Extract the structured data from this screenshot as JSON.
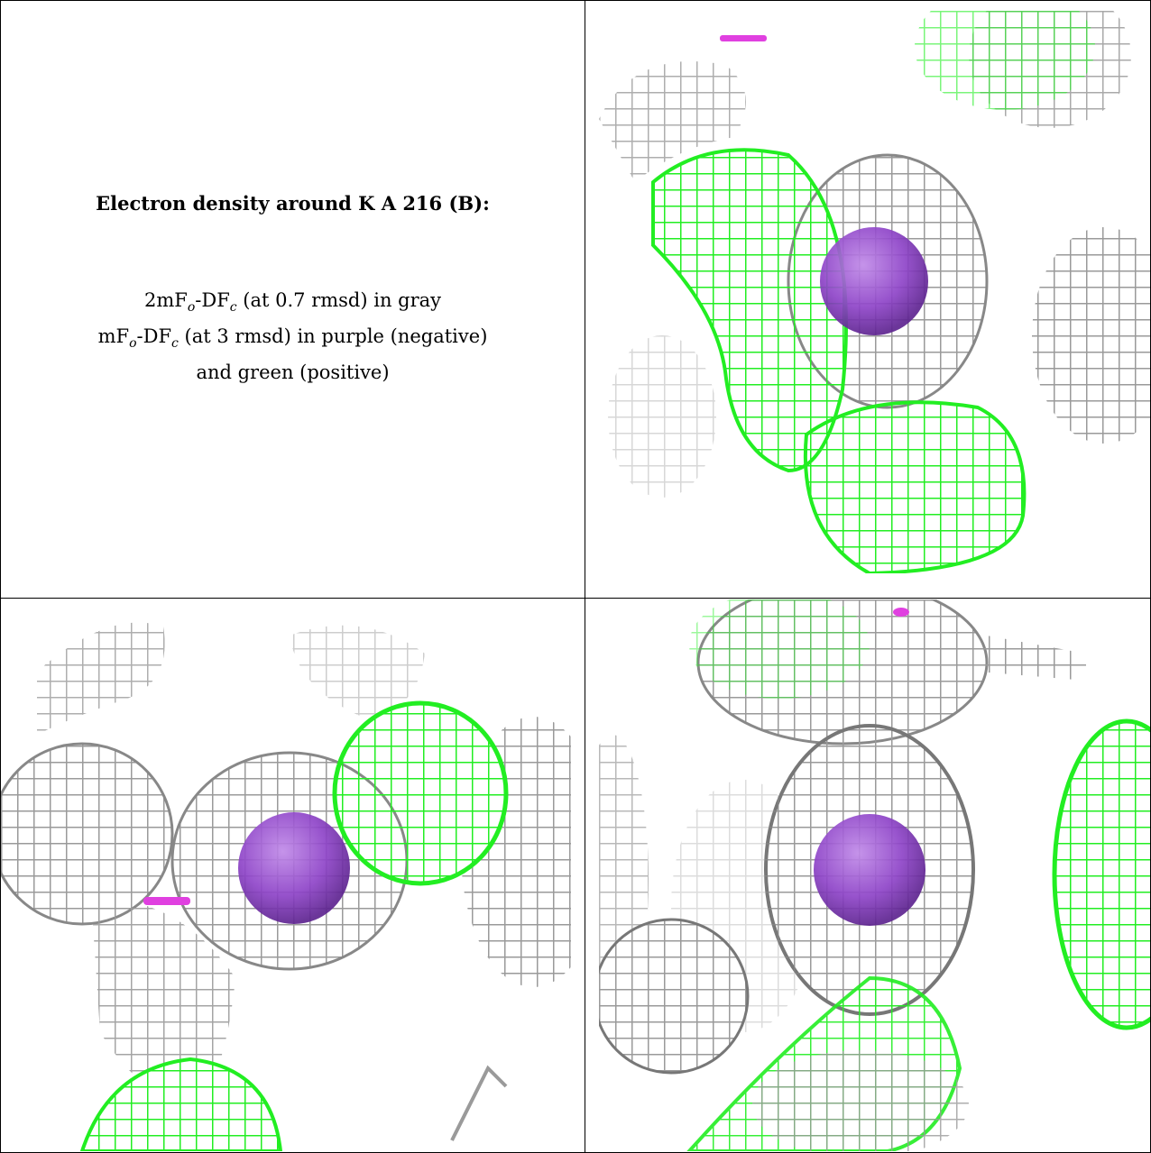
{
  "caption": {
    "title": "Electron density around K A 216 (B):",
    "lines": [
      {
        "prefix": "2mF",
        "sub1": "o",
        "mid": "-DF",
        "sub2": "c",
        "rest": " (at 0.7 rmsd) in gray"
      },
      {
        "prefix": "mF",
        "sub1": "o",
        "mid": "-DF",
        "sub2": "c",
        "rest": " (at 3 rmsd) in purple (negative)"
      },
      {
        "text": "and green (positive)"
      }
    ]
  },
  "colors": {
    "map_2fofc": "#b8b8b8",
    "map_fofc_positive": "#22ee22",
    "map_fofc_negative": "#e040e0",
    "potassium_ion": "#8e44c8"
  },
  "panels": [
    {
      "id": "top-right",
      "description_icon": "density-mesh"
    },
    {
      "id": "bottom-left",
      "description_icon": "density-mesh"
    },
    {
      "id": "bottom-right",
      "description_icon": "density-mesh"
    }
  ]
}
